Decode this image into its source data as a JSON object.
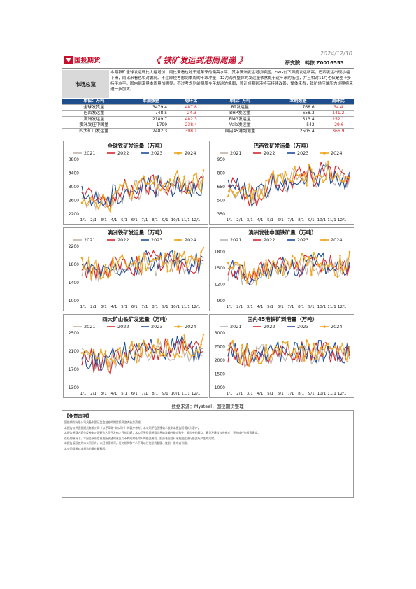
{
  "header": {
    "logo_cn": "国投期货",
    "logo_en": "SDIC FUTURES",
    "title": "《 铁矿发运到港周周递 》",
    "date": "2024/12/30",
    "org": "研究院　韩倞  Z0016553"
  },
  "summary": {
    "label": "市场总览",
    "text": "本期铁矿全球发运环比大幅增加，同比来看也处于近年来的偏高水平，其中澳洲发运增加明显，FMG创下周度发运新高，巴西发运出现小幅下滑，同比来看也相对偏弱。不过即使考虑到本周的年末冲量，12月海外整体的发运量依然处于近年来的低位，并且相对11月也仅是差不多持平水平。国内到港量本周量加明显，不过考虑到前期周今年发运的偏弱，预计短期到港将有持续改善，整体来看，铁矿供应端压力短期将来进一步加大。"
  },
  "supply_table": {
    "headers": [
      "单位：万吨",
      "本期数据",
      "周环比",
      "单位：万吨",
      "本期数据",
      "周环比"
    ],
    "rows": [
      [
        "全球发货量",
        "3479.4",
        "487.8",
        "RT发运量",
        "768.6",
        "34.4"
      ],
      [
        "巴西发运量",
        "748.5",
        "-24.3",
        "BHP发运量",
        "658.3",
        "141.2"
      ],
      [
        "澳洲发运量",
        "2189.7",
        "482.3",
        "FMG发运量",
        "513.4",
        "252.1"
      ],
      [
        "澳洲发往中国量",
        "1799",
        "238.4",
        "Vale发运量",
        "542",
        "-29.6"
      ],
      [
        "四大矿山发运量",
        "2482.3",
        "398.1",
        "国内45港到港量",
        "2505.4",
        "366.9"
      ]
    ]
  },
  "legend_years": [
    "2021",
    "2022",
    "2023",
    "2024"
  ],
  "colors": {
    "y2021": "#bfb3a8",
    "y2022": "#d9262c",
    "y2023": "#1f4e9c",
    "y2024": "#f2a51c"
  },
  "x_ticks": [
    "1/1",
    "2/1",
    "3/1",
    "4/1",
    "5/1",
    "6/1",
    "7/1",
    "8/1",
    "9/1",
    "10/1",
    "11/1",
    "12/1"
  ],
  "chart_data": [
    {
      "type": "line",
      "title": "全球铁矿发运量（万吨）",
      "ylim": [
        2200,
        3800
      ],
      "yticks": [
        "2200",
        "2600",
        "3000",
        "3400",
        "3800"
      ],
      "base": [
        2700,
        2620,
        2560,
        2760,
        2930,
        2900,
        3050,
        3000,
        3040,
        3090,
        2980,
        3060
      ],
      "end_2024": 3479
    },
    {
      "type": "line",
      "title": "巴西铁矿发运量（万吨）",
      "ylim": [
        350,
        950
      ],
      "yticks": [
        "350",
        "500",
        "650",
        "800",
        "950"
      ],
      "base": [
        640,
        580,
        540,
        610,
        700,
        720,
        750,
        770,
        780,
        800,
        760,
        740
      ],
      "end_2024": 748
    },
    {
      "type": "line",
      "title": "澳洲铁矿发运量（万吨）",
      "ylim": [
        1000,
        2200
      ],
      "yticks": [
        "1000",
        "1400",
        "1800",
        "2200"
      ],
      "base": [
        1700,
        1650,
        1620,
        1740,
        1800,
        1780,
        1860,
        1820,
        1840,
        1860,
        1800,
        1840
      ],
      "end_2024": 2190
    },
    {
      "type": "line",
      "title": "澳洲发往中国铁矿量（万吨）",
      "ylim": [
        900,
        1900
      ],
      "yticks": [
        "900",
        "1200",
        "1500",
        "1800"
      ],
      "base": [
        1450,
        1400,
        1380,
        1480,
        1520,
        1500,
        1560,
        1540,
        1560,
        1580,
        1520,
        1560
      ],
      "end_2024": 1799
    },
    {
      "type": "line",
      "title": "四大矿山铁矿发运量（万吨）",
      "ylim": [
        1300,
        2500
      ],
      "yticks": [
        "1300",
        "1700",
        "2100",
        "2500"
      ],
      "base": [
        1950,
        1880,
        1820,
        1980,
        2080,
        2060,
        2150,
        2120,
        2140,
        2170,
        2100,
        2140
      ],
      "end_2024": 2482
    },
    {
      "type": "line",
      "title": "国内45港铁矿到港量（万吨）",
      "ylim": [
        1000,
        3000
      ],
      "yticks": [
        "1000",
        "1500",
        "2000",
        "2500",
        "3000"
      ],
      "base": [
        2300,
        2200,
        2150,
        2250,
        2300,
        2280,
        2330,
        2310,
        2320,
        2340,
        2290,
        2300
      ],
      "end_2024": 2505
    }
  ],
  "source": "数据来源：Mysteel，国投期货整理",
  "disclaimer": {
    "title": "【免责声明】",
    "lines": [
      "国投期货有限公司具备中国证监会批准的期货投资咨询业务资格。",
      "本报告仅供国投期货有限公司（以下简称“本公司”）的客户参考。本公司不会因接收人收到本报告而视其为客户。",
      "本报告所载内容仅反映本公司研究人员于发布之日的判断，本公司不保证所载信息的准确性和完整性，报告中的观点、意见及建议仅供参考，不构成任何投资建议。",
      "在任何情况下，本报告所载信息或所表述的意见均不构成对任何人的投资建议，投资者应自行承担据此进行投资所产生的风险。",
      "本报告版权仅为本公司所有，未经书面许可，任何机构和个人不得以任何形式翻版、复制、发布或引用。",
      "本公司保留对本报告的最终解释权。"
    ]
  }
}
